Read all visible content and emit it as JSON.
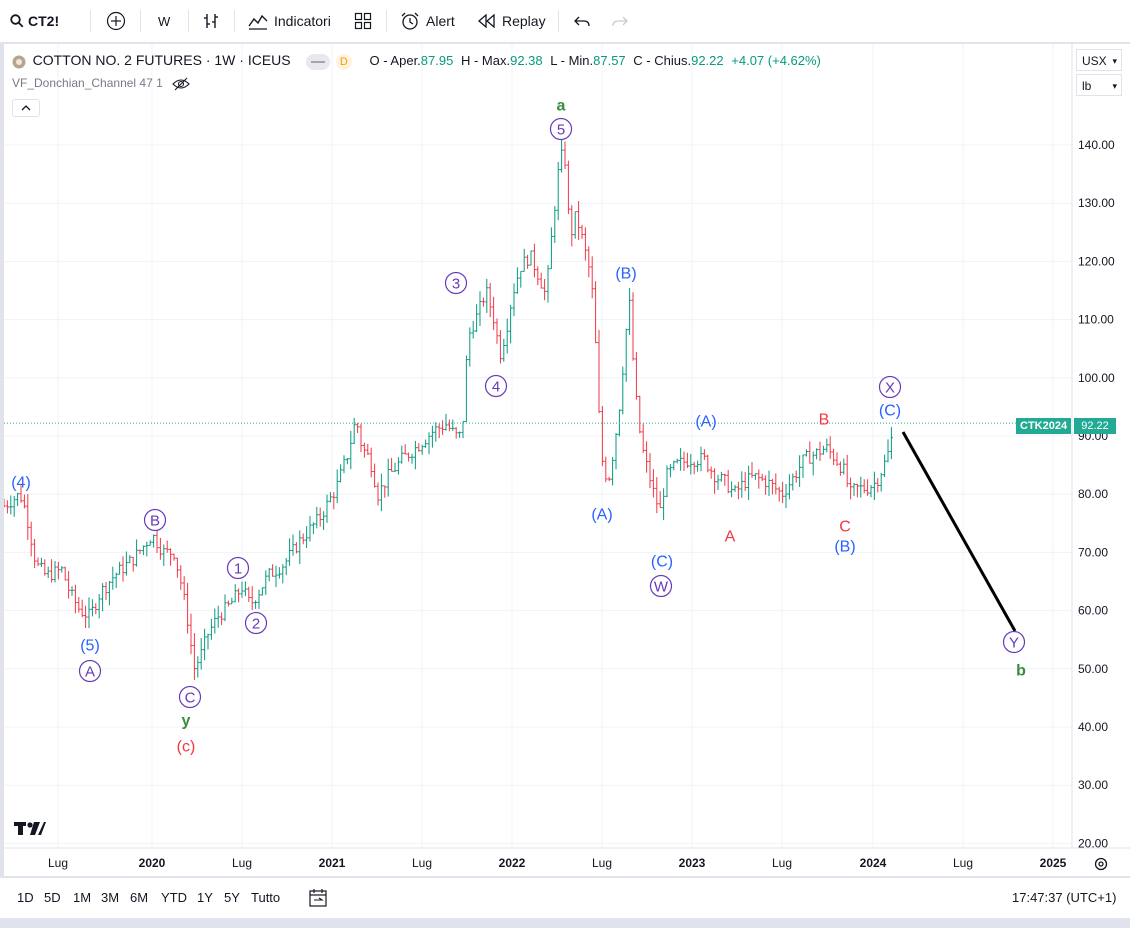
{
  "toolbar": {
    "symbol": "CT2!",
    "interval": "W",
    "indicators": "Indicatori",
    "alert": "Alert",
    "replay": "Replay"
  },
  "legend": {
    "title": "COTTON NO. 2 FUTURES · 1W · ICEUS",
    "badge": "D",
    "o_label": "O - Aper.",
    "o": "87.95",
    "h_label": "H - Max.",
    "h": "92.38",
    "l_label": "L - Min.",
    "l": "87.57",
    "c_label": "C - Chius.",
    "c": "92.22",
    "change": "+4.07 (+4.62%)",
    "indicator": "VF_Donchian_Channel 47 1"
  },
  "price_axis": {
    "currency": "USX",
    "unit": "lb",
    "ticks": [
      "140.00",
      "130.00",
      "120.00",
      "110.00",
      "100.00",
      "90.00",
      "80.00",
      "70.00",
      "60.00",
      "50.00",
      "40.00",
      "30.00",
      "20.00"
    ],
    "last_label": "CTK2024",
    "last_price": "92.22"
  },
  "time_axis": [
    {
      "label": "Lug"
    },
    {
      "label": "2020",
      "bold": true
    },
    {
      "label": "Lug"
    },
    {
      "label": "2021",
      "bold": true
    },
    {
      "label": "Lug"
    },
    {
      "label": "2022",
      "bold": true
    },
    {
      "label": "Lug"
    },
    {
      "label": "2023",
      "bold": true
    },
    {
      "label": "Lug"
    },
    {
      "label": "2024",
      "bold": true
    },
    {
      "label": "Lug"
    },
    {
      "label": "2025",
      "bold": true
    }
  ],
  "wave_labels": [
    {
      "text": "(4)",
      "color": "#2962ff",
      "circle": false
    },
    {
      "text": "B",
      "color": "#673ab7",
      "circle": true
    },
    {
      "text": "(5)",
      "color": "#2962ff",
      "circle": false
    },
    {
      "text": "A",
      "color": "#673ab7",
      "circle": true
    },
    {
      "text": "C",
      "color": "#673ab7",
      "circle": true
    },
    {
      "text": "y",
      "color": "#388e3c",
      "circle": false
    },
    {
      "text": "(c)",
      "color": "#f23645",
      "circle": false
    },
    {
      "text": "1",
      "color": "#673ab7",
      "circle": true
    },
    {
      "text": "2",
      "color": "#673ab7",
      "circle": true
    },
    {
      "text": "3",
      "color": "#673ab7",
      "circle": true
    },
    {
      "text": "4",
      "color": "#673ab7",
      "circle": true
    },
    {
      "text": "a",
      "color": "#388e3c",
      "circle": false
    },
    {
      "text": "5",
      "color": "#673ab7",
      "circle": true
    },
    {
      "text": "(B)",
      "color": "#2962ff",
      "circle": false
    },
    {
      "text": "(A)",
      "color": "#2962ff",
      "circle": false
    },
    {
      "text": "(C)",
      "color": "#2962ff",
      "circle": false
    },
    {
      "text": "W",
      "color": "#673ab7",
      "circle": true
    },
    {
      "text": "(A)",
      "color": "#2962ff",
      "circle": false
    },
    {
      "text": "A",
      "color": "#f23645",
      "circle": false
    },
    {
      "text": "B",
      "color": "#f23645",
      "circle": false
    },
    {
      "text": "C",
      "color": "#f23645",
      "circle": false
    },
    {
      "text": "(B)",
      "color": "#2962ff",
      "circle": false
    },
    {
      "text": "X",
      "color": "#673ab7",
      "circle": true
    },
    {
      "text": "(C)",
      "color": "#2962ff",
      "circle": false
    },
    {
      "text": "Y",
      "color": "#673ab7",
      "circle": true
    },
    {
      "text": "b",
      "color": "#388e3c",
      "circle": false
    }
  ],
  "ranges": [
    "1D",
    "5D",
    "1M",
    "3M",
    "6M",
    "YTD",
    "1Y",
    "5Y",
    "Tutto"
  ],
  "clock": "17:47:37 (UTC+1)",
  "colors": {
    "up": "#089981",
    "down": "#f23645",
    "last": "#22ab94",
    "projection": "#000000"
  }
}
